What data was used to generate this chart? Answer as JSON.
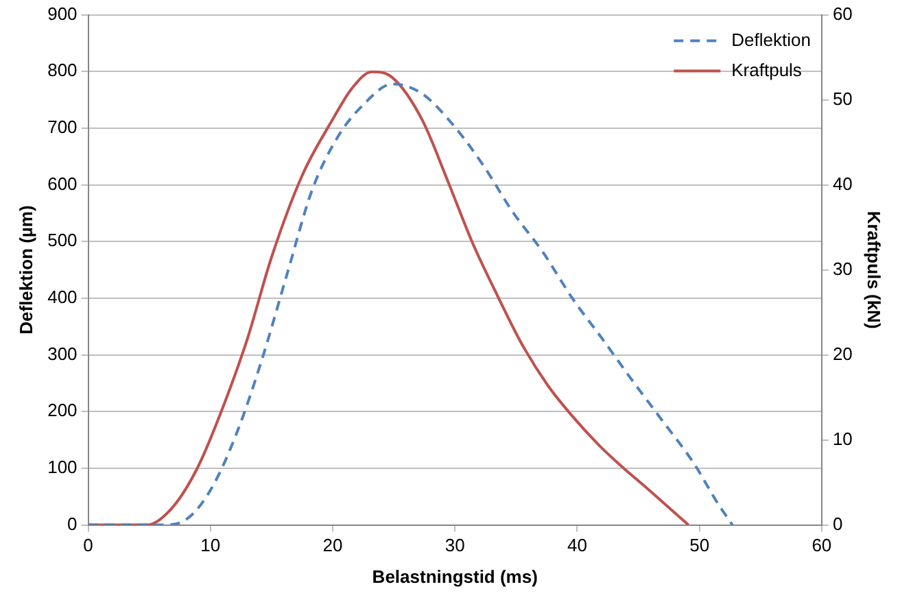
{
  "chart_data": {
    "type": "line",
    "xlabel": "Belastningstid (ms)",
    "ylabel": "Deflektion (µm)",
    "y2label": "Kraftpuls (kN)",
    "xlim": [
      0,
      60
    ],
    "xticks": [
      0,
      10,
      20,
      30,
      40,
      50,
      60
    ],
    "ylim": [
      0,
      900
    ],
    "yticks": [
      0,
      100,
      200,
      300,
      400,
      500,
      600,
      700,
      800,
      900
    ],
    "y2lim": [
      0,
      60
    ],
    "y2ticks": [
      0,
      10,
      20,
      30,
      40,
      50,
      60
    ],
    "grid": "y",
    "legend": "top right",
    "marker": "none",
    "series": [
      {
        "name": "Deflektion",
        "color": "#4f81bd",
        "line_style": "dashed",
        "x": [
          0,
          6.0,
          8.1,
          10.1,
          12.2,
          14.2,
          16.3,
          18.3,
          20.4,
          22.4,
          24.9,
          27.3,
          29.8,
          32.3,
          34.7,
          37.2,
          39.6,
          42.1,
          44.5,
          47.0,
          49.5,
          51.5,
          52.7
        ],
        "values": [
          0,
          0,
          11,
          65,
          165,
          291,
          445,
          590,
          684,
          739,
          778,
          761,
          707,
          635,
          553,
          481,
          400,
          327,
          255,
          183,
          110,
          38,
          0
        ]
      },
      {
        "name": "Kraftpuls",
        "color": "#c0504d",
        "line_style": "solid",
        "axis": "y2",
        "x": [
          0,
          4.8,
          6.8,
          8.9,
          10.9,
          13.0,
          15.0,
          17.5,
          20.0,
          21.6,
          23.2,
          24.9,
          27.3,
          29.4,
          31.4,
          33.5,
          35.5,
          37.6,
          39.6,
          41.7,
          43.7,
          45.8,
          49.1
        ],
        "values": [
          0,
          0,
          1.9,
          6.6,
          13.4,
          21.8,
          31.5,
          41.1,
          47.7,
          51.4,
          53.3,
          52.6,
          47.7,
          40.5,
          33.3,
          26.9,
          21.2,
          16.4,
          12.8,
          9.5,
          6.8,
          4.2,
          0
        ]
      }
    ]
  }
}
